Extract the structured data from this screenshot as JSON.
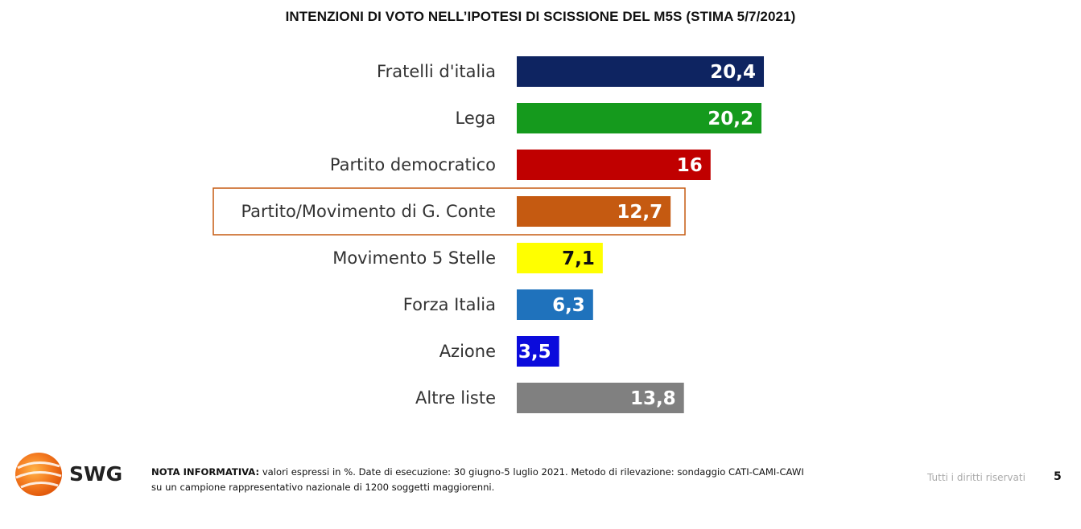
{
  "chart_data": {
    "type": "bar",
    "orientation": "horizontal",
    "title": "INTENZIONI DI VOTO NELL’IPOTESI DI SCISSIONE DEL M5S (STIMA 5/7/2021)",
    "xlabel": "",
    "ylabel": "",
    "grid": false,
    "categories": [
      "Fratelli d'italia",
      "Lega",
      "Partito democratico",
      "Partito/Movimento di G. Conte",
      "Movimento 5 Stelle",
      "Forza Italia",
      "Azione",
      "Altre liste"
    ],
    "values": [
      20.4,
      20.2,
      16,
      12.7,
      7.1,
      6.3,
      3.5,
      13.8
    ],
    "value_labels": [
      "20,4",
      "20,2",
      "16",
      "12,7",
      "7,1",
      "6,3",
      "3,5",
      "13,8"
    ],
    "colors": [
      "#0e2461",
      "#159a1d",
      "#c00000",
      "#c55a11",
      "#ffff00",
      "#1f72bc",
      "#0b0bdc",
      "#808080"
    ],
    "label_colors": [
      "#ffffff",
      "#ffffff",
      "#ffffff",
      "#ffffff",
      "#111111",
      "#ffffff",
      "#ffffff",
      "#ffffff"
    ],
    "highlighted_category": "Partito/Movimento di G. Conte",
    "highlight_color": "#c55a11"
  },
  "footer": {
    "logo_text": "SWG",
    "note_label": "NOTA INFORMATIVA:",
    "note_line1": " valori espressi in %. Date di esecuzione: 30 giugno-5 luglio 2021. Metodo di rilevazione: sondaggio CATI-CAMI-CAWI",
    "note_line2": "su un campione rappresentativo nazionale di 1200 soggetti maggiorenni.",
    "rights": "Tutti i diritti riservati",
    "page_number": "5"
  }
}
